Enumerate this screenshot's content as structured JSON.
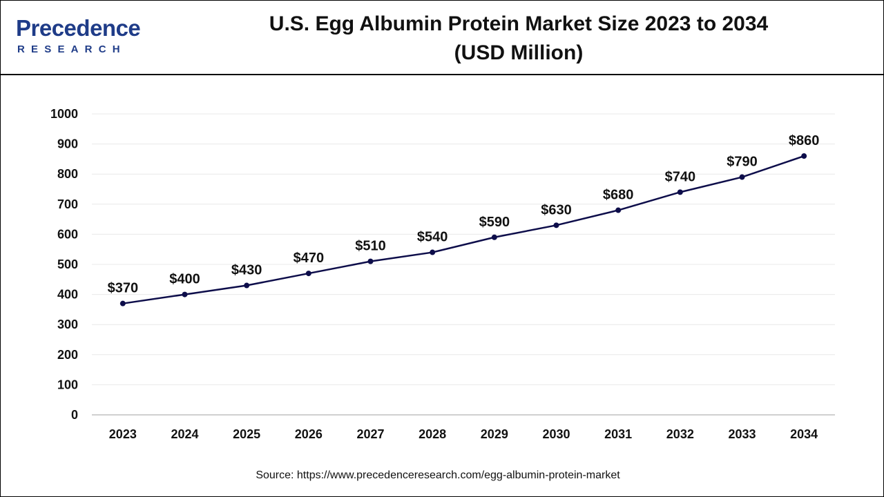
{
  "brand": {
    "name": "Precedence",
    "sub": "RESEARCH",
    "color": "#1f3c88"
  },
  "title_line1": "U.S. Egg Albumin Protein Market Size 2023 to 2034",
  "title_line2": "(USD Million)",
  "source": "Source: https://www.precedenceresearch.com/egg-albumin-protein-market",
  "chart_data": {
    "type": "line",
    "title": "U.S. Egg Albumin Protein Market Size 2023 to 2034 (USD Million)",
    "xlabel": "",
    "ylabel": "",
    "categories": [
      "2023",
      "2024",
      "2025",
      "2026",
      "2027",
      "2028",
      "2029",
      "2030",
      "2031",
      "2032",
      "2033",
      "2034"
    ],
    "series": [
      {
        "values": [
          370,
          400,
          430,
          470,
          510,
          540,
          590,
          630,
          680,
          740,
          790,
          860
        ],
        "labels": [
          "$370",
          "$400",
          "$430",
          "$470",
          "$510",
          "$540",
          "$590",
          "$630",
          "$680",
          "$740",
          "$790",
          "$860"
        ],
        "color": "#0d0d4a"
      }
    ],
    "ylim": [
      0,
      1000
    ],
    "yticks": [
      "0",
      "100",
      "200",
      "300",
      "400",
      "500",
      "600",
      "700",
      "800",
      "900",
      "1000"
    ],
    "grid": true,
    "gridColor": "#e8e8e8",
    "legend": "none"
  }
}
